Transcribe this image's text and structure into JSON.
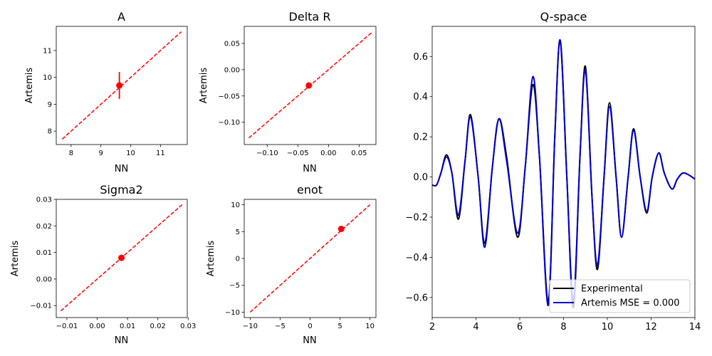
{
  "chart_data": [
    {
      "type": "scatter",
      "title": "A",
      "xlabel": "NN",
      "ylabel": "Artemis",
      "xlim": [
        7.5,
        11.9
      ],
      "ylim": [
        7.5,
        11.9
      ],
      "xticks": [
        8,
        9,
        10,
        11
      ],
      "yticks": [
        8,
        9,
        10,
        11
      ],
      "xtick_labels": [
        "8",
        "9",
        "10",
        "11"
      ],
      "ytick_labels": [
        "8",
        "9",
        "10",
        "11"
      ],
      "identity_line": [
        7.7,
        11.7
      ],
      "points": [
        {
          "x": 9.62,
          "y": 9.7,
          "yerr_low": 9.2,
          "yerr_high": 10.2
        }
      ],
      "colors": {
        "points": "#ff0000",
        "line": "#ff0000"
      }
    },
    {
      "type": "scatter",
      "title": "Delta R",
      "xlabel": "NN",
      "ylabel": "Artemis",
      "xlim": [
        -0.1375,
        0.0775
      ],
      "ylim": [
        -0.1425,
        0.0825
      ],
      "xticks": [
        -0.1,
        -0.05,
        0.0,
        0.05
      ],
      "yticks": [
        -0.1,
        -0.05,
        0.0,
        0.05
      ],
      "xtick_labels": [
        "−0.10",
        "−0.05",
        "0.00",
        "0.05"
      ],
      "ytick_labels": [
        "−0.10",
        "−0.05",
        "0.00",
        "0.05"
      ],
      "identity_line": [
        -0.13,
        0.07
      ],
      "points": [
        {
          "x": -0.032,
          "y": -0.03
        }
      ],
      "colors": {
        "points": "#ff0000",
        "line": "#ff0000"
      }
    },
    {
      "type": "scatter",
      "title": "Sigma2",
      "xlabel": "NN",
      "ylabel": "Artemis",
      "xlim": [
        -0.0135,
        0.0297
      ],
      "ylim": [
        -0.0145,
        0.03
      ],
      "xticks": [
        -0.01,
        0.0,
        0.01,
        0.02,
        0.03
      ],
      "yticks": [
        -0.01,
        0.0,
        0.01,
        0.02,
        0.03
      ],
      "xtick_labels": [
        "−0.01",
        "0.00",
        "0.01",
        "0.02",
        "0.03"
      ],
      "ytick_labels": [
        "−0.01",
        "0.00",
        "0.01",
        "0.02",
        "0.03"
      ],
      "identity_line": [
        -0.012,
        0.028
      ],
      "points": [
        {
          "x": 0.008,
          "y": 0.008
        }
      ],
      "colors": {
        "points": "#ff0000",
        "line": "#ff0000"
      }
    },
    {
      "type": "scatter",
      "title": "enot",
      "xlabel": "NN",
      "ylabel": "Artemis",
      "xlim": [
        -11,
        11
      ],
      "ylim": [
        -11,
        11
      ],
      "xticks": [
        -10,
        -5,
        0,
        5,
        10
      ],
      "yticks": [
        -10,
        -5,
        0,
        5,
        10
      ],
      "xtick_labels": [
        "−10",
        "−5",
        "0",
        "5",
        "10"
      ],
      "ytick_labels": [
        "−10",
        "−5",
        "0",
        "5",
        "10"
      ],
      "identity_line": [
        -10,
        10
      ],
      "points": [
        {
          "x": 5.2,
          "y": 5.5
        }
      ],
      "colors": {
        "points": "#ff0000",
        "line": "#ff0000"
      }
    },
    {
      "type": "line",
      "title": "Q-space",
      "xlim": [
        2,
        14
      ],
      "ylim": [
        -0.7,
        0.75
      ],
      "xticks": [
        2,
        4,
        6,
        8,
        10,
        12,
        14
      ],
      "yticks": [
        -0.6,
        -0.4,
        -0.2,
        0.0,
        0.2,
        0.4,
        0.6
      ],
      "xtick_labels": [
        "2",
        "4",
        "6",
        "8",
        "10",
        "12",
        "14"
      ],
      "ytick_labels": [
        "−0.6",
        "−0.4",
        "−0.2",
        "0.0",
        "0.2",
        "0.4",
        "0.6"
      ],
      "legend_position": "lower-right",
      "series": [
        {
          "name": "Experimental",
          "color": "#000000",
          "points": [
            [
              2.0,
              -0.04
            ],
            [
              2.2,
              -0.04
            ],
            [
              2.4,
              0.02
            ],
            [
              2.65,
              0.11
            ],
            [
              2.9,
              0.02
            ],
            [
              3.2,
              -0.21
            ],
            [
              3.5,
              0.08
            ],
            [
              3.75,
              0.31
            ],
            [
              4.1,
              0.0
            ],
            [
              4.4,
              -0.33
            ],
            [
              4.75,
              0.05
            ],
            [
              5.05,
              0.29
            ],
            [
              5.4,
              0.1
            ],
            [
              5.9,
              -0.3
            ],
            [
              6.25,
              0.05
            ],
            [
              6.6,
              0.46
            ],
            [
              6.9,
              0.1
            ],
            [
              7.3,
              -0.62
            ],
            [
              7.6,
              0.2
            ],
            [
              7.85,
              0.68
            ],
            [
              8.15,
              0.0
            ],
            [
              8.45,
              -0.65
            ],
            [
              8.75,
              0.1
            ],
            [
              9.0,
              0.55
            ],
            [
              9.3,
              -0.1
            ],
            [
              9.55,
              -0.46
            ],
            [
              9.85,
              0.0
            ],
            [
              10.1,
              0.37
            ],
            [
              10.4,
              0.0
            ],
            [
              10.65,
              -0.3
            ],
            [
              10.95,
              0.0
            ],
            [
              11.2,
              0.24
            ],
            [
              11.5,
              0.0
            ],
            [
              11.8,
              -0.18
            ],
            [
              12.05,
              0.0
            ],
            [
              12.35,
              0.12
            ],
            [
              12.6,
              0.02
            ],
            [
              12.95,
              -0.06
            ],
            [
              13.2,
              -0.01
            ],
            [
              13.5,
              0.02
            ],
            [
              14.0,
              -0.01
            ]
          ]
        },
        {
          "name": "Artemis MSE = 0.000",
          "color": "#0000cc",
          "points": [
            [
              2.0,
              -0.04
            ],
            [
              2.2,
              -0.04
            ],
            [
              2.4,
              0.02
            ],
            [
              2.65,
              0.1
            ],
            [
              2.9,
              0.02
            ],
            [
              3.2,
              -0.19
            ],
            [
              3.5,
              0.08
            ],
            [
              3.75,
              0.3
            ],
            [
              4.1,
              0.0
            ],
            [
              4.4,
              -0.35
            ],
            [
              4.75,
              0.05
            ],
            [
              5.05,
              0.29
            ],
            [
              5.4,
              0.08
            ],
            [
              5.9,
              -0.28
            ],
            [
              6.25,
              0.05
            ],
            [
              6.6,
              0.5
            ],
            [
              6.9,
              0.1
            ],
            [
              7.3,
              -0.64
            ],
            [
              7.6,
              0.2
            ],
            [
              7.85,
              0.68
            ],
            [
              8.15,
              0.0
            ],
            [
              8.45,
              -0.62
            ],
            [
              8.75,
              0.1
            ],
            [
              9.0,
              0.53
            ],
            [
              9.3,
              -0.1
            ],
            [
              9.55,
              -0.44
            ],
            [
              9.85,
              0.0
            ],
            [
              10.1,
              0.35
            ],
            [
              10.4,
              0.0
            ],
            [
              10.65,
              -0.3
            ],
            [
              10.95,
              0.0
            ],
            [
              11.2,
              0.23
            ],
            [
              11.5,
              0.0
            ],
            [
              11.8,
              -0.17
            ],
            [
              12.05,
              0.0
            ],
            [
              12.35,
              0.12
            ],
            [
              12.6,
              0.02
            ],
            [
              12.95,
              -0.06
            ],
            [
              13.2,
              -0.01
            ],
            [
              13.5,
              0.02
            ],
            [
              14.0,
              -0.01
            ]
          ]
        }
      ]
    }
  ]
}
